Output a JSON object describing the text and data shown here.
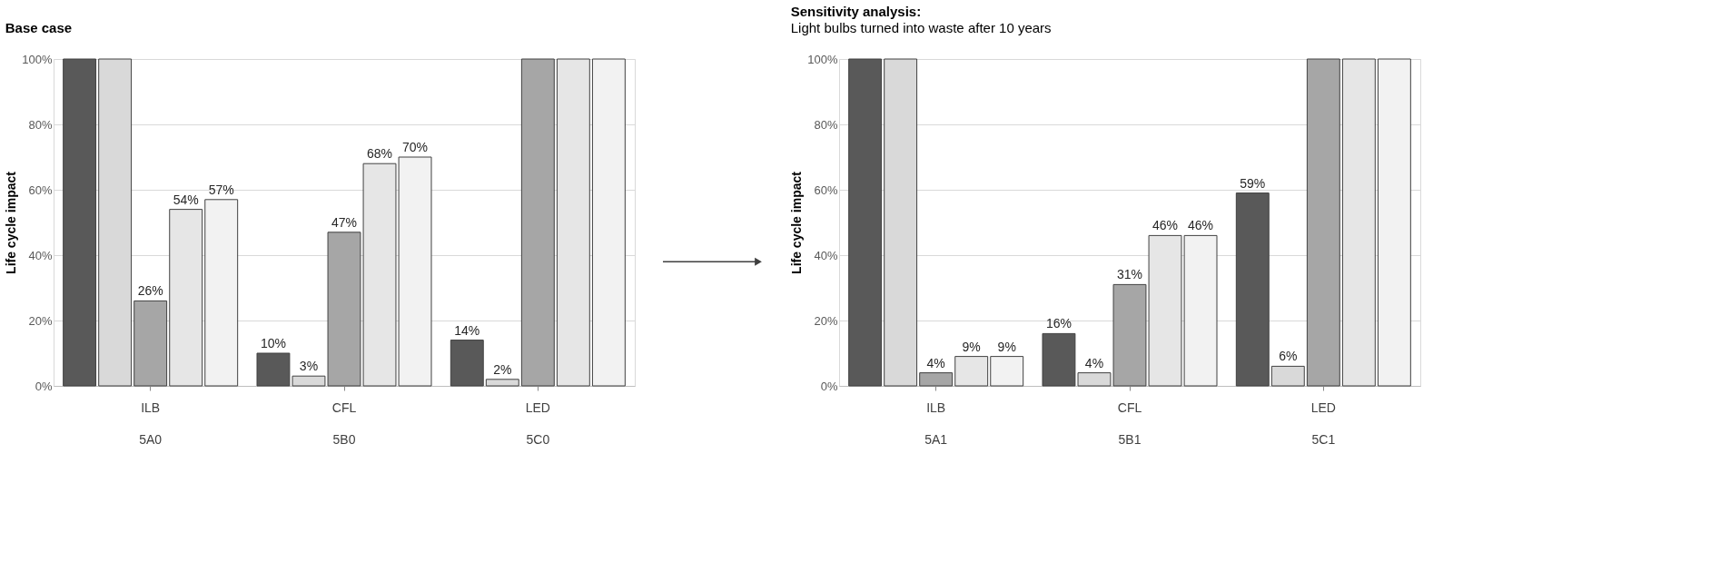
{
  "chart_data": [
    {
      "type": "bar",
      "title": "Base case",
      "ylabel": "Life cycle impact",
      "categories": [
        "ILB",
        "CFL",
        "LED"
      ],
      "annotations": [
        "5A0",
        "5B0",
        "5C0"
      ],
      "ylim": [
        0,
        100
      ],
      "yticks": [
        {
          "value": 0,
          "label": "0%"
        },
        {
          "value": 20,
          "label": "20%"
        },
        {
          "value": 40,
          "label": "40%"
        },
        {
          "value": 60,
          "label": "60%"
        },
        {
          "value": 80,
          "label": "80%"
        },
        {
          "value": 100,
          "label": "100%"
        }
      ],
      "grid": "y",
      "legend": false,
      "series": [
        {
          "color": "#595959",
          "values": [
            100,
            10,
            14
          ],
          "value_labels": [
            null,
            "10%",
            "14%"
          ]
        },
        {
          "color": "#d9d9d9",
          "values": [
            100,
            3,
            2
          ],
          "value_labels": [
            null,
            "3%",
            "2%"
          ]
        },
        {
          "color": "#a6a6a6",
          "values": [
            26,
            47,
            100
          ],
          "value_labels": [
            "26%",
            "47%",
            null
          ]
        },
        {
          "color": "#e6e6e6",
          "values": [
            54,
            68,
            100
          ],
          "value_labels": [
            "54%",
            "68%",
            null
          ]
        },
        {
          "color": "#f2f2f2",
          "values": [
            57,
            70,
            100
          ],
          "value_labels": [
            "57%",
            "70%",
            null
          ]
        }
      ]
    },
    {
      "type": "bar",
      "title": "Sensitivity analysis:",
      "subtitle": "Light bulbs turned into waste after 10 years",
      "ylabel": "Life cycle impact",
      "categories": [
        "ILB",
        "CFL",
        "LED"
      ],
      "annotations": [
        "5A1",
        "5B1",
        "5C1"
      ],
      "ylim": [
        0,
        100
      ],
      "yticks": [
        {
          "value": 0,
          "label": "0%"
        },
        {
          "value": 20,
          "label": "20%"
        },
        {
          "value": 40,
          "label": "40%"
        },
        {
          "value": 60,
          "label": "60%"
        },
        {
          "value": 80,
          "label": "80%"
        },
        {
          "value": 100,
          "label": "100%"
        }
      ],
      "grid": "y",
      "legend": false,
      "series": [
        {
          "color": "#595959",
          "values": [
            100,
            16,
            59
          ],
          "value_labels": [
            null,
            "16%",
            "59%"
          ]
        },
        {
          "color": "#d9d9d9",
          "values": [
            100,
            4,
            6
          ],
          "value_labels": [
            null,
            "4%",
            "6%"
          ]
        },
        {
          "color": "#a6a6a6",
          "values": [
            4,
            31,
            100
          ],
          "value_labels": [
            "4%",
            "31%",
            null
          ]
        },
        {
          "color": "#e6e6e6",
          "values": [
            9,
            46,
            100
          ],
          "value_labels": [
            "9%",
            "46%",
            null
          ]
        },
        {
          "color": "#f2f2f2",
          "values": [
            9,
            46,
            100
          ],
          "value_labels": [
            "9%",
            "46%",
            null
          ]
        }
      ]
    }
  ]
}
